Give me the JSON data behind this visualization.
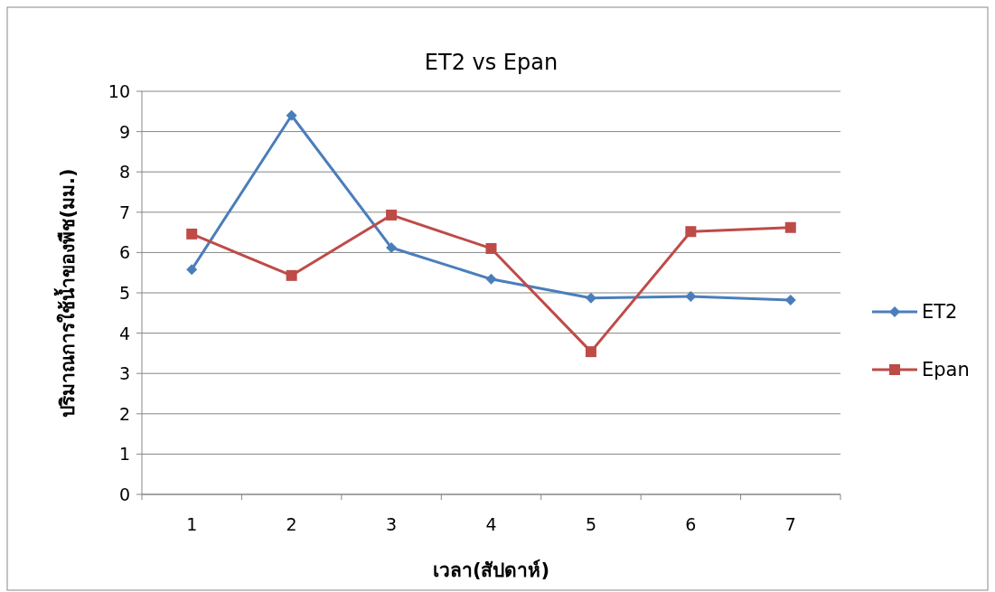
{
  "chart_data": {
    "type": "line",
    "title": "ET2 vs Epan",
    "xlabel": "เวลา(สัปดาห์)",
    "ylabel": "ปริมาณการใช้น้ำของพืช(มม.)",
    "categories": [
      "1",
      "2",
      "3",
      "4",
      "5",
      "6",
      "7"
    ],
    "series": [
      {
        "name": "ET2",
        "color": "#4a7ebb",
        "marker": "diamond",
        "values": [
          5.58,
          9.4,
          6.12,
          5.34,
          4.87,
          4.91,
          4.82
        ]
      },
      {
        "name": "Epan",
        "color": "#be4b48",
        "marker": "square",
        "values": [
          6.46,
          5.43,
          6.93,
          6.1,
          3.54,
          6.52,
          6.62
        ]
      }
    ],
    "ylim": [
      0,
      10
    ],
    "yticks": [
      0,
      1,
      2,
      3,
      4,
      5,
      6,
      7,
      8,
      9,
      10
    ],
    "grid": "y",
    "legend": "right",
    "line_style": "solid"
  }
}
